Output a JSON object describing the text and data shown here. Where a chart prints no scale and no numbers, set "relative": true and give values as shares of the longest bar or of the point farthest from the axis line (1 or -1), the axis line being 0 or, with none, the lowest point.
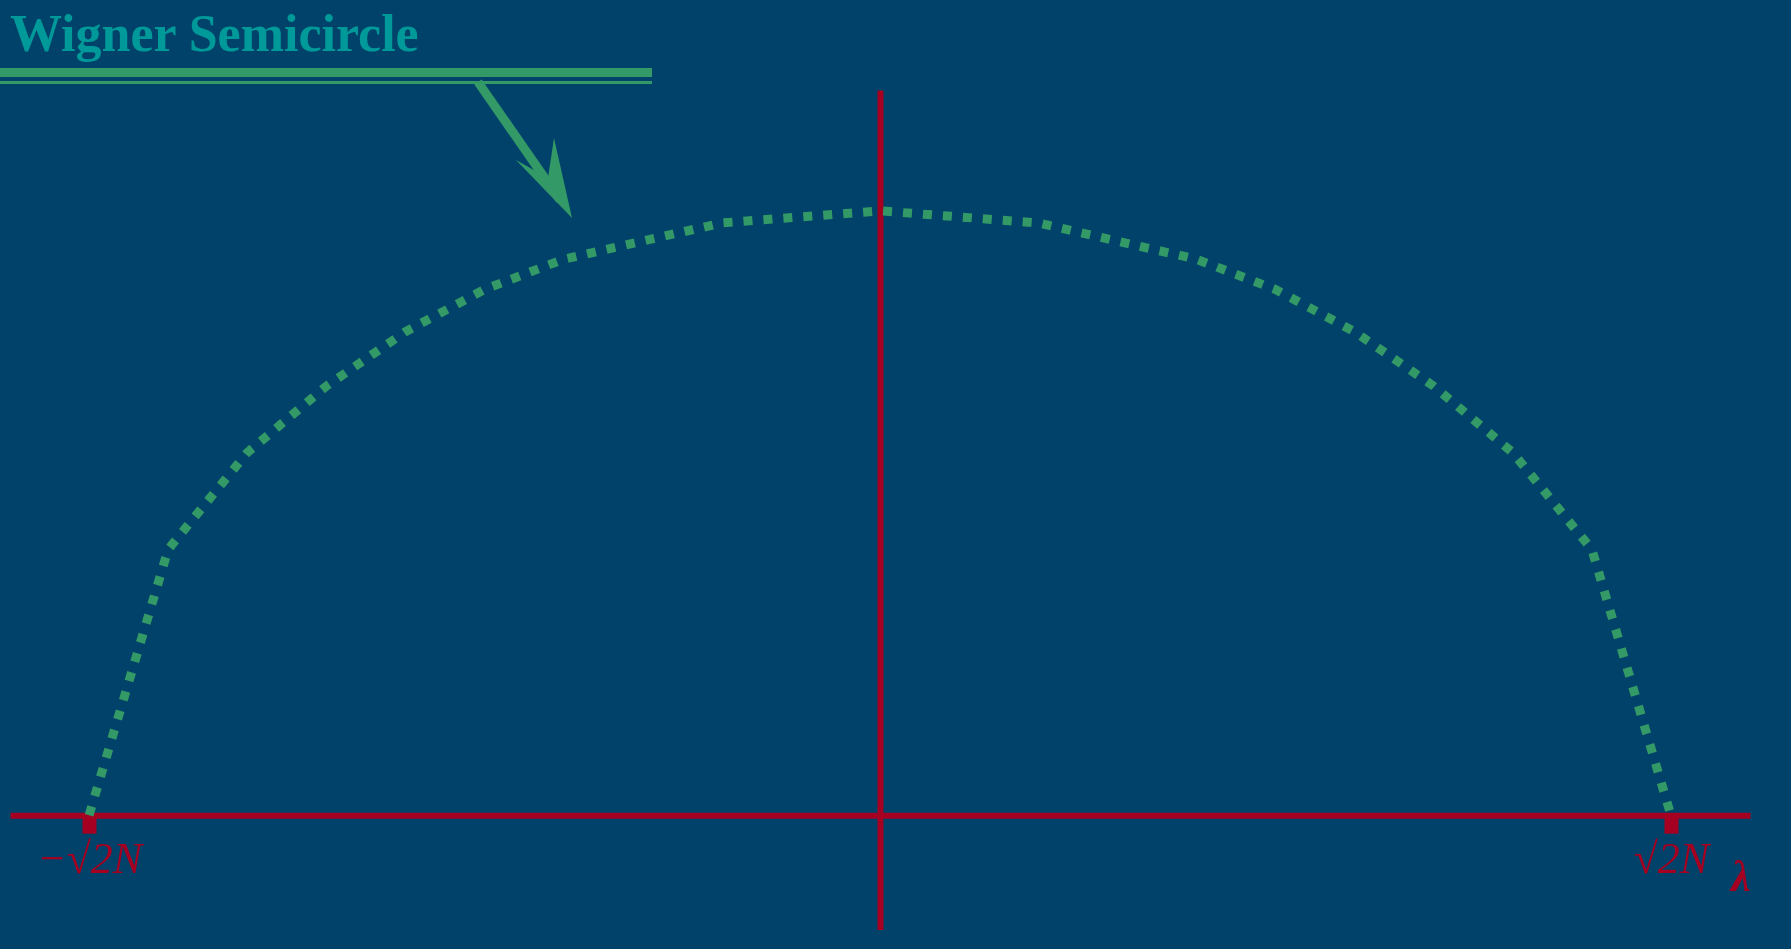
{
  "chart_data": {
    "type": "line",
    "title": "Wigner Semicircle",
    "xlabel": "λ",
    "relative": true,
    "marker": "none",
    "line_style": "dotted",
    "grid": false,
    "categories": [
      "−√2N",
      null,
      null,
      null,
      null,
      null,
      null,
      null,
      null,
      null,
      null,
      null,
      null,
      null,
      null,
      null,
      null,
      null,
      null,
      null,
      "√2N"
    ],
    "series": [
      {
        "color": "#339966",
        "values": [
          0,
          0.44,
          0.6,
          0.71,
          0.8,
          0.87,
          0.92,
          0.95,
          0.98,
          0.99,
          1,
          0.99,
          0.98,
          0.95,
          0.92,
          0.87,
          0.8,
          0.71,
          0.6,
          0.44,
          0
        ]
      }
    ]
  }
}
